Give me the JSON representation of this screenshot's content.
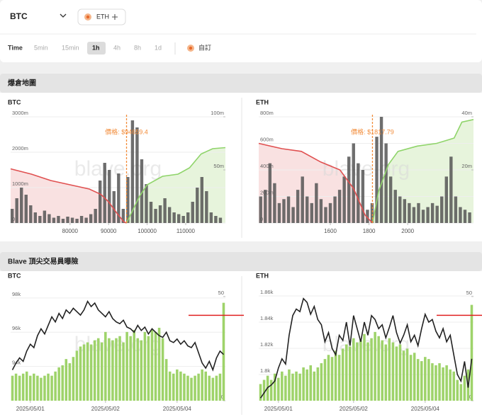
{
  "header": {
    "symbol": "BTC",
    "chips": [
      "ETH"
    ]
  },
  "timeframe": {
    "label": "Time",
    "options": [
      "5min",
      "15min",
      "1h",
      "4h",
      "8h",
      "1d"
    ],
    "selected": 2,
    "custom": "自訂"
  },
  "sections": [
    {
      "title": "爆倉地圖"
    },
    {
      "title": "Blave 頂尖交易員曝險"
    }
  ],
  "watermark": "blave.org",
  "chart_data": [
    {
      "type": "liquidation",
      "title": "BTC",
      "xlim": [
        64600,
        120300
      ],
      "xticks": [
        80000,
        90000,
        100000,
        110000
      ],
      "ylim": [
        0,
        3000
      ],
      "yticks": [
        0,
        {
          "value": 1000,
          "label": "1000m"
        },
        {
          "value": 2000,
          "label": "2000m"
        },
        {
          "value": 3000,
          "label": "3000m"
        }
      ],
      "y2lim": [
        0,
        100
      ],
      "y2ticks": [
        {
          "value": 50,
          "label": "50m"
        },
        {
          "value": 100,
          "label": "100m"
        }
      ],
      "price": 94659.4,
      "price_label": "價格: $94659.4",
      "price_color": "#f28c3a",
      "bar_color": "#555555",
      "bars": {
        "x": [
          65000,
          66200,
          67400,
          68600,
          69800,
          71000,
          72200,
          73400,
          74600,
          75800,
          77000,
          78200,
          79400,
          80600,
          81800,
          83000,
          84200,
          85400,
          86600,
          87800,
          89000,
          90200,
          91400,
          92600,
          93800,
          95000,
          96200,
          97400,
          98600,
          99800,
          101000,
          102200,
          103400,
          104600,
          105800,
          107000,
          108200,
          109400,
          110600,
          111800,
          113000,
          114200,
          115400,
          116600,
          117800,
          119000
        ],
        "values": [
          400,
          700,
          1000,
          800,
          500,
          300,
          200,
          350,
          250,
          150,
          200,
          120,
          180,
          150,
          120,
          200,
          150,
          250,
          400,
          1200,
          1700,
          1500,
          900,
          1400,
          400,
          1300,
          2900,
          2700,
          1800,
          1100,
          600,
          400,
          500,
          700,
          450,
          300,
          250,
          200,
          300,
          600,
          1000,
          1300,
          900,
          300,
          200,
          150
        ]
      },
      "series": [
        {
          "color": "#e05050",
          "fill": "#f9e1e1",
          "axis": "y2",
          "x": [
            64600,
            70000,
            75000,
            80000,
            85000,
            88000,
            90000,
            92000,
            94000,
            94659.4
          ],
          "values": [
            51,
            46,
            40,
            36,
            32,
            27,
            20,
            10,
            1,
            0
          ]
        },
        {
          "color": "#8fd46a",
          "fill": "#e7f4dc",
          "axis": "y2",
          "x": [
            94659.4,
            96000,
            98000,
            100000,
            104000,
            108000,
            111000,
            114000,
            117000,
            120300
          ],
          "values": [
            0,
            10,
            25,
            36,
            44,
            46,
            52,
            65,
            70,
            71
          ]
        }
      ]
    },
    {
      "type": "liquidation",
      "title": "ETH",
      "xlim": [
        1230,
        2340
      ],
      "xticks": [
        1600,
        1800,
        2000
      ],
      "ylim": [
        0,
        800
      ],
      "yticks": [
        0,
        {
          "value": 200,
          "label": "200m"
        },
        {
          "value": 400,
          "label": "400m"
        },
        {
          "value": 600,
          "label": "600m"
        },
        {
          "value": 800,
          "label": "800m"
        }
      ],
      "y2lim": [
        0,
        40
      ],
      "y2ticks": [
        {
          "value": 20,
          "label": "20m"
        },
        {
          "value": 40,
          "label": "40m"
        }
      ],
      "price": 1817.79,
      "price_label": "價格: $1817.79",
      "price_color": "#f28c3a",
      "bar_color": "#555555",
      "bars": {
        "x": [
          1240,
          1264,
          1288,
          1312,
          1336,
          1360,
          1384,
          1408,
          1432,
          1456,
          1480,
          1504,
          1528,
          1552,
          1576,
          1600,
          1624,
          1648,
          1672,
          1696,
          1720,
          1744,
          1768,
          1792,
          1816,
          1840,
          1864,
          1888,
          1912,
          1936,
          1960,
          1984,
          2008,
          2032,
          2056,
          2080,
          2104,
          2128,
          2152,
          2176,
          2200,
          2224,
          2248,
          2272,
          2296,
          2320
        ],
        "values": [
          200,
          250,
          450,
          300,
          150,
          180,
          200,
          120,
          250,
          350,
          200,
          150,
          300,
          180,
          120,
          150,
          200,
          250,
          350,
          500,
          600,
          450,
          400,
          100,
          150,
          650,
          800,
          600,
          350,
          250,
          200,
          180,
          150,
          120,
          150,
          100,
          120,
          150,
          130,
          200,
          350,
          500,
          200,
          120,
          100,
          80
        ]
      },
      "series": [
        {
          "color": "#e05050",
          "fill": "#f9e1e1",
          "axis": "y2",
          "x": [
            1230,
            1350,
            1450,
            1550,
            1650,
            1720,
            1780,
            1817.79
          ],
          "values": [
            30,
            28,
            27,
            23,
            20,
            13,
            3,
            0
          ]
        },
        {
          "color": "#8fd46a",
          "fill": "#e7f4dc",
          "axis": "y2",
          "x": [
            1817.79,
            1850,
            1900,
            1950,
            2050,
            2150,
            2240,
            2280,
            2340
          ],
          "values": [
            0,
            12,
            22,
            27,
            29,
            30,
            32,
            38,
            39
          ]
        }
      ]
    },
    {
      "type": "exposure",
      "title": "BTC",
      "categories": [
        null,
        null,
        null,
        null,
        null,
        "2025/05/01",
        null,
        null,
        null,
        null,
        null,
        null,
        null,
        null,
        null,
        null,
        null,
        null,
        null,
        null,
        null,
        null,
        null,
        null,
        null,
        null,
        "2025/05/02",
        null,
        null,
        null,
        null,
        null,
        null,
        null,
        null,
        null,
        null,
        null,
        null,
        null,
        null,
        null,
        null,
        null,
        null,
        null,
        "2025/05/04",
        null,
        null,
        null,
        null,
        null,
        null,
        null,
        null,
        null,
        null,
        null,
        null,
        null
      ],
      "ylim": [
        92000,
        98450
      ],
      "yticks": [
        {
          "value": 94000,
          "label": "94k"
        },
        {
          "value": 96000,
          "label": "96k"
        },
        {
          "value": 98000,
          "label": "98k"
        }
      ],
      "y2lim": [
        0,
        53
      ],
      "y2ticks": [
        0,
        50
      ],
      "threshold": {
        "value": 41,
        "axis": "y2",
        "color": "#e02020"
      },
      "series": [
        {
          "color": "#222222",
          "values": [
            93800,
            94200,
            94500,
            94300,
            94900,
            95300,
            95100,
            95800,
            96200,
            95900,
            96400,
            96900,
            96600,
            97100,
            96800,
            97300,
            97100,
            97400,
            97200,
            97000,
            97300,
            97800,
            97500,
            97700,
            97300,
            97100,
            96900,
            97200,
            96800,
            96600,
            96500,
            96700,
            96300,
            96200,
            96000,
            96400,
            96100,
            96300,
            95900,
            96200,
            96000,
            95800,
            95700,
            96000,
            95500,
            95400,
            95600,
            95300,
            95500,
            95200,
            95100,
            95400,
            94800,
            94200,
            93900,
            94300,
            93800,
            94500,
            94900,
            94700
          ]
        },
        {
          "type": "bar",
          "axis": "y2",
          "color": "#9ed36a",
          "values": [
            12,
            13,
            12,
            13,
            14,
            12,
            13,
            12,
            11,
            12,
            13,
            12,
            14,
            16,
            17,
            20,
            18,
            21,
            24,
            26,
            27,
            28,
            27,
            29,
            30,
            28,
            33,
            30,
            29,
            30,
            31,
            28,
            33,
            31,
            34,
            30,
            29,
            33,
            31,
            34,
            33,
            35,
            30,
            20,
            14,
            13,
            15,
            14,
            13,
            12,
            11,
            12,
            13,
            15,
            14,
            12,
            11,
            12,
            13,
            47
          ]
        }
      ]
    },
    {
      "type": "exposure",
      "title": "ETH",
      "categories": [
        null,
        null,
        null,
        null,
        null,
        "2025/05/01",
        null,
        null,
        null,
        null,
        null,
        null,
        null,
        null,
        null,
        null,
        null,
        null,
        null,
        null,
        null,
        null,
        null,
        null,
        null,
        null,
        "2025/05/02",
        null,
        null,
        null,
        null,
        null,
        null,
        null,
        null,
        null,
        null,
        null,
        null,
        null,
        null,
        null,
        null,
        null,
        null,
        null,
        "2025/05/04",
        null,
        null,
        null,
        null,
        null,
        null,
        null,
        null,
        null,
        null,
        null,
        null,
        null
      ],
      "ylim": [
        1780,
        1864.3
      ],
      "yticks": [
        {
          "value": 1800,
          "label": "1.8k"
        },
        {
          "value": 1820,
          "label": "1.82k"
        },
        {
          "value": 1840,
          "label": "1.84k"
        },
        {
          "value": 1860,
          "label": "1.86k"
        }
      ],
      "y2lim": [
        0,
        53
      ],
      "y2ticks": [
        0,
        50
      ],
      "threshold": {
        "value": 41,
        "axis": "y2",
        "color": "#e02020"
      },
      "series": [
        {
          "color": "#222222",
          "values": [
            1782,
            1786,
            1790,
            1792,
            1795,
            1805,
            1812,
            1808,
            1830,
            1845,
            1850,
            1848,
            1858,
            1855,
            1846,
            1852,
            1842,
            1838,
            1825,
            1832,
            1820,
            1815,
            1830,
            1826,
            1840,
            1822,
            1845,
            1835,
            1825,
            1840,
            1830,
            1845,
            1842,
            1835,
            1838,
            1828,
            1836,
            1845,
            1832,
            1824,
            1830,
            1838,
            1825,
            1830,
            1822,
            1835,
            1846,
            1840,
            1842,
            1833,
            1828,
            1835,
            1825,
            1830,
            1815,
            1800,
            1795,
            1810,
            1790,
            1812
          ]
        },
        {
          "type": "bar",
          "axis": "y2",
          "color": "#9ed36a",
          "values": [
            8,
            10,
            12,
            10,
            13,
            11,
            14,
            12,
            15,
            13,
            14,
            13,
            16,
            15,
            17,
            14,
            16,
            18,
            20,
            22,
            21,
            24,
            22,
            25,
            27,
            26,
            30,
            28,
            29,
            32,
            28,
            30,
            33,
            31,
            29,
            27,
            30,
            28,
            26,
            27,
            24,
            25,
            22,
            23,
            20,
            19,
            21,
            20,
            18,
            17,
            18,
            16,
            17,
            15,
            14,
            10,
            8,
            12,
            15,
            46
          ]
        }
      ]
    }
  ]
}
